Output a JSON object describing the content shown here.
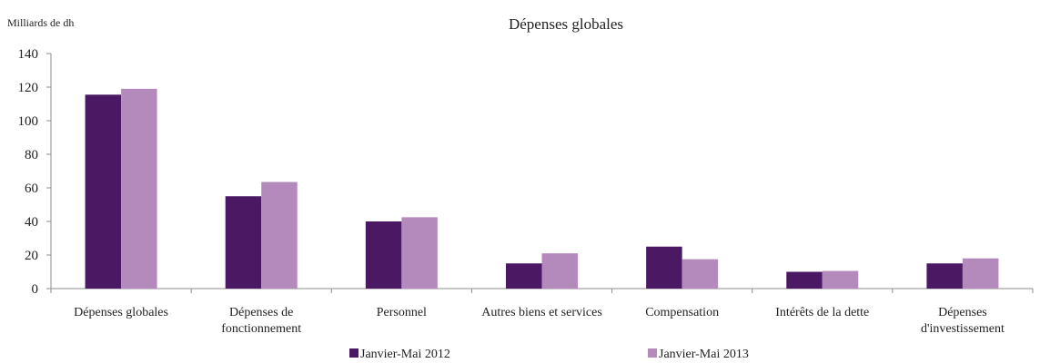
{
  "chart_data": {
    "type": "bar",
    "title": "Dépenses globales",
    "unit_label": "Milliards de dh",
    "xlabel": "",
    "ylabel": "",
    "ylim": [
      0,
      140
    ],
    "yticks": [
      0,
      20,
      40,
      60,
      80,
      100,
      120,
      140
    ],
    "grid": false,
    "legend_position": "bottom",
    "categories": [
      [
        "Dépenses globales"
      ],
      [
        "Dépenses de",
        "fonctionnement"
      ],
      [
        "Personnel"
      ],
      [
        "Autres biens et services"
      ],
      [
        "Compensation"
      ],
      [
        "Intérêts de la dette"
      ],
      [
        "Dépenses",
        "d'investissement"
      ]
    ],
    "series": [
      {
        "name": "Janvier-Mai 2012",
        "color": "#4b1963",
        "values": [
          115.5,
          55,
          40,
          15,
          25,
          10,
          15
        ]
      },
      {
        "name": "Janvier-Mai 2013",
        "color": "#b48abc",
        "values": [
          119,
          63.5,
          42.5,
          21,
          17.5,
          10.5,
          18
        ]
      }
    ]
  }
}
